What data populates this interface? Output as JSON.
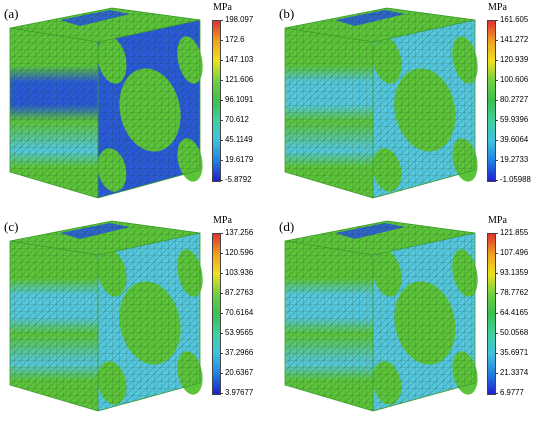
{
  "panels": [
    {
      "label": "(a)",
      "unit": "MPa",
      "ticks": [
        "198.097",
        "172.6",
        "147.103",
        "121.606",
        "96.1091",
        "70.612",
        "45.1149",
        "19.6179",
        "-5.8792"
      ]
    },
    {
      "label": "(b)",
      "unit": "MPa",
      "ticks": [
        "161.605",
        "141.272",
        "120.939",
        "100.606",
        "80.2727",
        "59.9396",
        "39.6064",
        "19.2733",
        "-1.05988"
      ]
    },
    {
      "label": "(c)",
      "unit": "MPa",
      "ticks": [
        "137.256",
        "120.596",
        "103.936",
        "87.2763",
        "70.6164",
        "53.9565",
        "37.2966",
        "20.6367",
        "3.97677"
      ]
    },
    {
      "label": "(d)",
      "unit": "MPa",
      "ticks": [
        "121.855",
        "107.496",
        "93.1359",
        "78.7762",
        "64.4165",
        "50.0568",
        "35.6971",
        "21.3374",
        "6.9777"
      ]
    }
  ],
  "colors": {
    "colormap": [
      "#e03030",
      "#f0a020",
      "#f0e020",
      "#70d040",
      "#3cc050",
      "#40d0a0",
      "#40c0e0",
      "#2080e0",
      "#2020d0"
    ],
    "green": "#5cc43a",
    "green_dark": "#3a9a2a",
    "blue": "#2a5ad8",
    "cyan": "#54c6de",
    "mesh": "#1a3a10"
  }
}
